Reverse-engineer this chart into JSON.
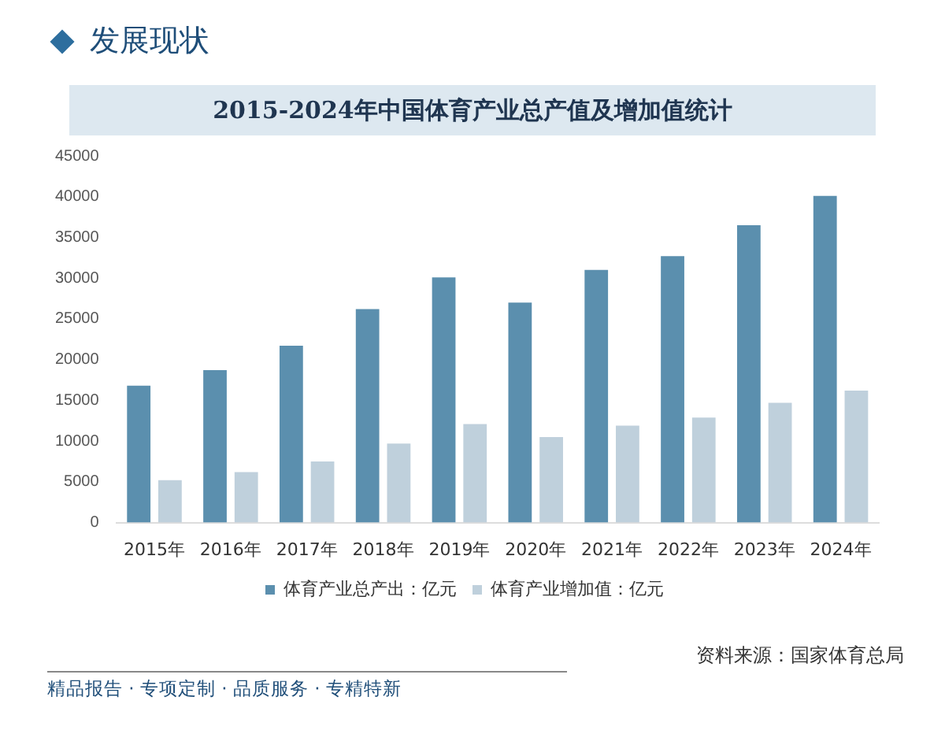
{
  "chart_data": {
    "type": "bar",
    "title": "2015-2024年中国体育产业总产值及增加值统计",
    "subtitle": "发展现状",
    "categories": [
      "2015年",
      "2016年",
      "2017年",
      "2018年",
      "2019年",
      "2020年",
      "2021年",
      "2022年",
      "2023年",
      "2024年"
    ],
    "series": [
      {
        "name": "体育产业总产出：亿元",
        "color": "#5b8fae",
        "values": [
          16800,
          18700,
          21700,
          26200,
          30100,
          27000,
          31000,
          32700,
          36500,
          40100
        ]
      },
      {
        "name": "体育产业增加值：亿元",
        "color": "#bfd0dc",
        "values": [
          5200,
          6200,
          7500,
          9700,
          12100,
          10500,
          11900,
          12900,
          14700,
          16200
        ]
      }
    ],
    "ylim": [
      0,
      45000
    ],
    "yticks": [
      0,
      5000,
      10000,
      15000,
      20000,
      25000,
      30000,
      35000,
      40000,
      45000
    ],
    "grid": false,
    "legend": "bottom",
    "annotations": [
      "资料来源：国家体育总局",
      "精品报告 · 专项定制 · 品质服务 · 专精特新"
    ]
  }
}
